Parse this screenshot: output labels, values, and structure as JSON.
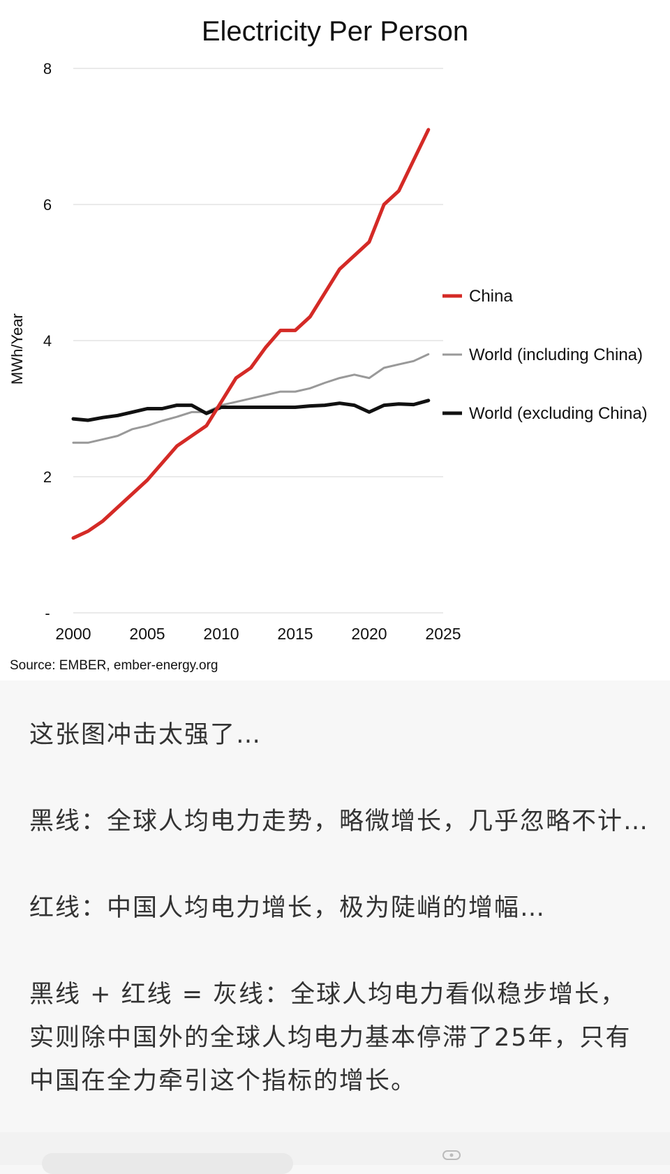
{
  "chart_data": {
    "type": "line",
    "title": "Electricity Per Person",
    "ylabel": "MWh/Year",
    "xlabel": "",
    "xlim": [
      2000,
      2025
    ],
    "ylim": [
      0,
      8
    ],
    "y_ticks": [
      "-",
      "2",
      "4",
      "6",
      "8"
    ],
    "x_ticks": [
      "2000",
      "2005",
      "2010",
      "2015",
      "2020",
      "2025"
    ],
    "grid": "horizontal",
    "legend_position": "right",
    "source": "Source: EMBER, ember-energy.org",
    "series": [
      {
        "name": "China",
        "color": "#d42a26",
        "x": [
          2000,
          2001,
          2002,
          2003,
          2004,
          2005,
          2006,
          2007,
          2008,
          2009,
          2010,
          2011,
          2012,
          2013,
          2014,
          2015,
          2016,
          2017,
          2018,
          2019,
          2020,
          2021,
          2022,
          2023,
          2024
        ],
        "y": [
          1.1,
          1.2,
          1.35,
          1.55,
          1.75,
          1.95,
          2.2,
          2.45,
          2.6,
          2.75,
          3.1,
          3.45,
          3.6,
          3.9,
          4.15,
          4.15,
          4.35,
          4.7,
          5.05,
          5.25,
          5.45,
          6.0,
          6.2,
          6.65,
          7.1
        ]
      },
      {
        "name": "World (including China)",
        "color": "#999999",
        "x": [
          2000,
          2001,
          2002,
          2003,
          2004,
          2005,
          2006,
          2007,
          2008,
          2009,
          2010,
          2011,
          2012,
          2013,
          2014,
          2015,
          2016,
          2017,
          2018,
          2019,
          2020,
          2021,
          2022,
          2023,
          2024
        ],
        "y": [
          2.5,
          2.5,
          2.55,
          2.6,
          2.7,
          2.75,
          2.82,
          2.88,
          2.95,
          2.95,
          3.05,
          3.1,
          3.15,
          3.2,
          3.25,
          3.25,
          3.3,
          3.38,
          3.45,
          3.5,
          3.45,
          3.6,
          3.65,
          3.7,
          3.8
        ]
      },
      {
        "name": "World (excluding China)",
        "color": "#111111",
        "x": [
          2000,
          2001,
          2002,
          2003,
          2004,
          2005,
          2006,
          2007,
          2008,
          2009,
          2010,
          2011,
          2012,
          2013,
          2014,
          2015,
          2016,
          2017,
          2018,
          2019,
          2020,
          2021,
          2022,
          2023,
          2024
        ],
        "y": [
          2.85,
          2.83,
          2.87,
          2.9,
          2.95,
          3.0,
          3.0,
          3.05,
          3.05,
          2.93,
          3.02,
          3.02,
          3.02,
          3.02,
          3.02,
          3.02,
          3.04,
          3.05,
          3.08,
          3.05,
          2.95,
          3.05,
          3.07,
          3.06,
          3.12
        ]
      }
    ]
  },
  "post": {
    "paragraphs": [
      "这张图冲击太强了…",
      "黑线：全球人均电力走势，略微增长，几乎忽略不计…",
      "红线：中国人均电力增长，极为陡峭的增幅…",
      "黑线 + 红线 = 灰线：全球人均电力看似稳步增长，实则除中国外的全球人均电力基本停滞了25年，只有中国在全力牵引这个指标的增长。"
    ]
  }
}
